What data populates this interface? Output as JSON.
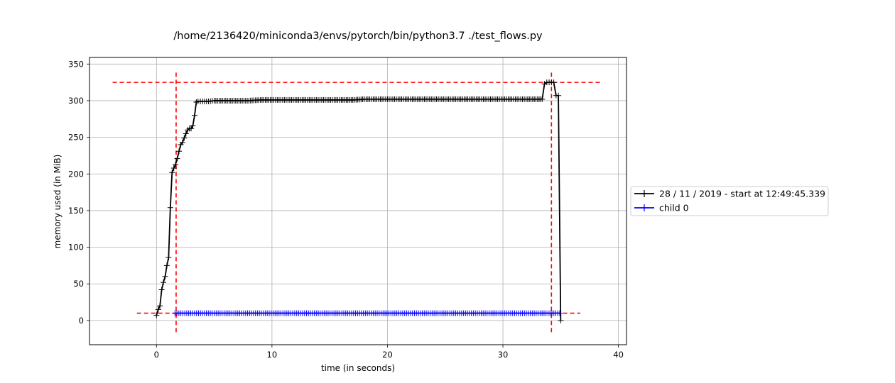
{
  "chart_data": {
    "type": "line",
    "title": "/home/2136420/miniconda3/envs/pytorch/bin/python3.7 ./test_flows.py",
    "xlabel": "time (in seconds)",
    "ylabel": "memory used (in MiB)",
    "xlim": [
      -5.8,
      40.7
    ],
    "ylim": [
      -33,
      359
    ],
    "xticks": [
      0,
      10,
      20,
      30,
      40
    ],
    "yticks": [
      0,
      50,
      100,
      150,
      200,
      250,
      300,
      350
    ],
    "grid": true,
    "legend_position": "right",
    "colors": {
      "main": "#000000",
      "child": "#0000ff",
      "markers": "#ff0000"
    },
    "series": [
      {
        "name": "28 / 11 / 2019 - start at 12:49:45.339",
        "color": "#000000",
        "x": [
          0.0,
          0.15,
          0.3,
          0.45,
          0.6,
          0.75,
          0.9,
          1.05,
          1.2,
          1.35,
          1.5,
          1.65,
          1.8,
          1.95,
          2.1,
          2.25,
          2.4,
          2.55,
          2.7,
          2.85,
          3.0,
          3.15,
          3.3,
          3.45,
          3.6,
          3.8,
          4.0,
          4.5,
          5.0,
          6.0,
          7.0,
          8.0,
          9.0,
          10.0,
          12.0,
          14.0,
          16.0,
          17.0,
          18.0,
          20.0,
          22.0,
          25.0,
          28.0,
          30.0,
          32.0,
          33.0,
          33.4,
          33.6,
          33.8,
          34.0,
          34.2,
          34.4,
          34.6,
          34.8,
          35.0
        ],
        "y": [
          7,
          15,
          20,
          42,
          52,
          60,
          75,
          86,
          154,
          202,
          208,
          213,
          221,
          231,
          240,
          243,
          249,
          255,
          260,
          262,
          262,
          266,
          280,
          298,
          299,
          299,
          299,
          299,
          300,
          300,
          300,
          300,
          301,
          301,
          301,
          301,
          301,
          301,
          302,
          302,
          302,
          302,
          302,
          302,
          302,
          302,
          302,
          323,
          325,
          325,
          325,
          325,
          307,
          307,
          0
        ]
      },
      {
        "name": "child 0",
        "color": "#0000ff",
        "x": [
          1.6,
          35.0
        ],
        "y": [
          10,
          10
        ]
      }
    ],
    "reference_lines": {
      "horizontal": [
        {
          "y": 325,
          "x_from": -3.8,
          "x_to": 38.6
        },
        {
          "y": 10,
          "x_from": -1.7,
          "x_to": 36.7
        }
      ],
      "vertical": [
        {
          "x": 1.7,
          "y_from": -16,
          "y_to": 342
        },
        {
          "x": 34.2,
          "y_from": -16,
          "y_to": 342
        }
      ]
    }
  }
}
